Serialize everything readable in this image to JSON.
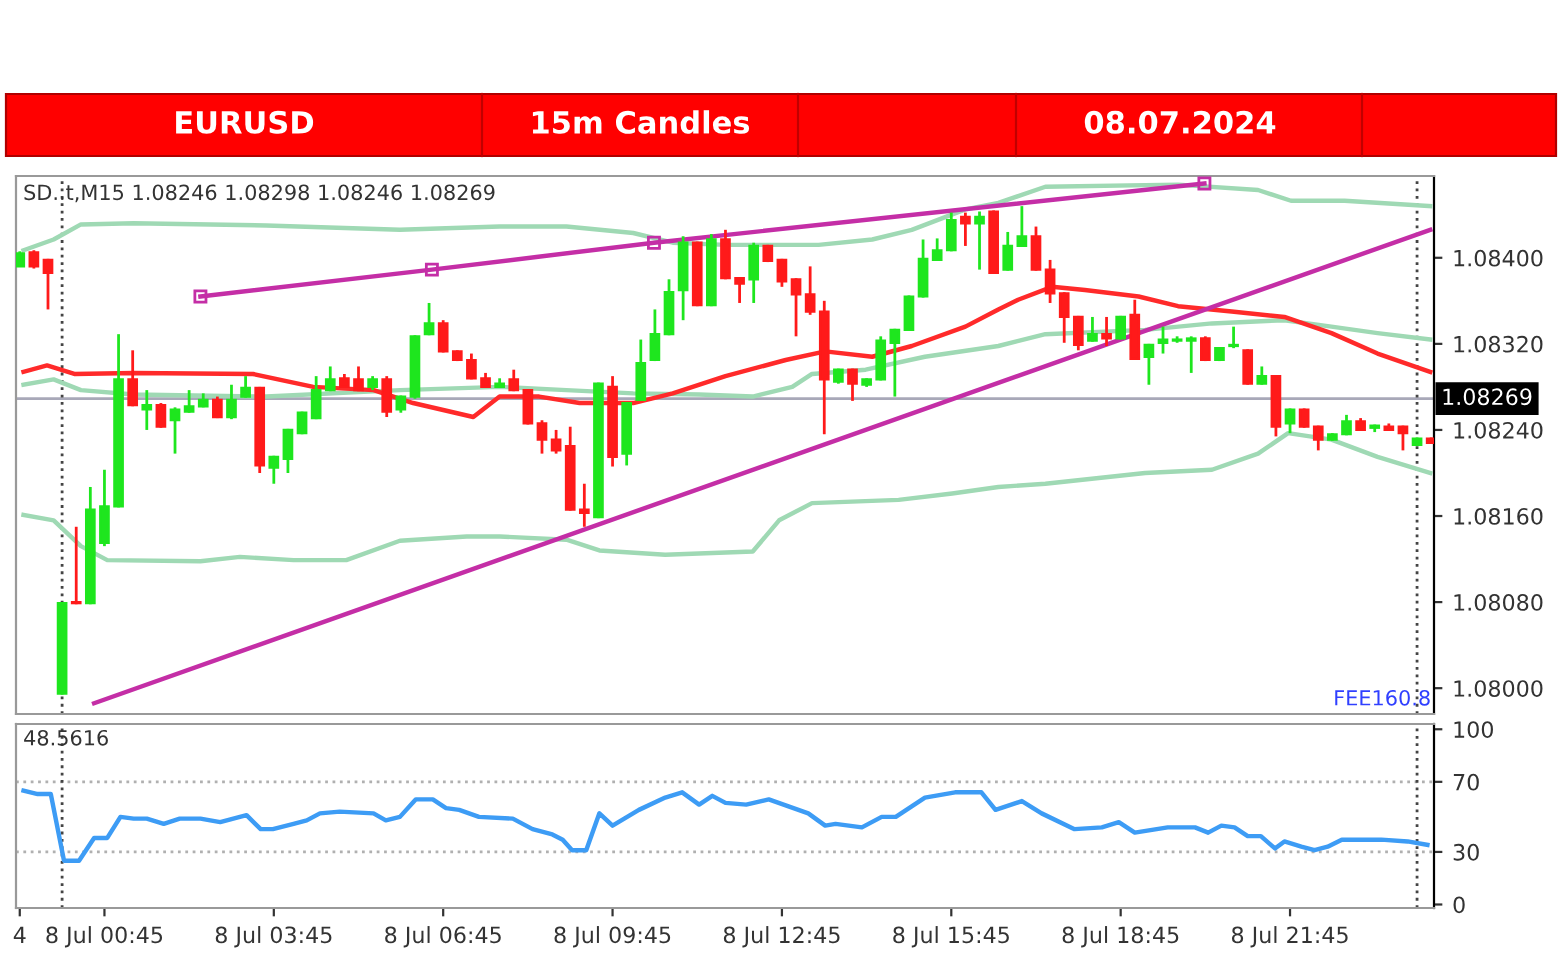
{
  "chart_data": [
    {
      "type": "candlestick",
      "title": "EURUSD",
      "subtitle": "15m Candles",
      "annotations": [
        "08.07.2024",
        "SD..t,M15 1.08246 1.08298 1.08246 1.08269",
        "FEE160.8"
      ],
      "xlim": [
        "2024-07-07T23:11",
        "2024-07-09T00:18"
      ],
      "ylim": [
        1.07976,
        1.08476
      ],
      "tick_labels": "y",
      "yticks": [
        {
          "value": 1.08,
          "label": "1.08000"
        },
        {
          "value": 1.0808,
          "label": "1.08080"
        },
        {
          "value": 1.0816,
          "label": "1.08160"
        },
        {
          "value": 1.0824,
          "label": "1.08240"
        },
        {
          "value": 1.0832,
          "label": "1.08320"
        },
        {
          "value": 1.084,
          "label": "1.08400"
        }
      ],
      "ref_lines": [
        {
          "axis": "y",
          "value": 1.08269,
          "label": "1.08269",
          "color": "#a8a8b8"
        },
        {
          "axis": "x",
          "value": "2024-07-08T00:00",
          "line_style": "dotted",
          "color": "#444444"
        },
        {
          "axis": "x",
          "value": "2024-07-09T00:00",
          "line_style": "dotted",
          "color": "#444444"
        }
      ],
      "series": [
        {
          "type": "candlestick",
          "x": [
            "2024-07-07T23:15",
            "2024-07-07T23:30",
            "2024-07-07T23:45",
            "2024-07-08T00:00",
            "2024-07-08T00:15",
            "2024-07-08T00:30",
            "2024-07-08T00:45",
            "2024-07-08T01:00",
            "2024-07-08T01:15",
            "2024-07-08T01:30",
            "2024-07-08T01:45",
            "2024-07-08T02:00",
            "2024-07-08T02:15",
            "2024-07-08T02:30",
            "2024-07-08T02:45",
            "2024-07-08T03:00",
            "2024-07-08T03:15",
            "2024-07-08T03:30",
            "2024-07-08T03:45",
            "2024-07-08T04:00",
            "2024-07-08T04:15",
            "2024-07-08T04:30",
            "2024-07-08T04:45",
            "2024-07-08T05:00",
            "2024-07-08T05:15",
            "2024-07-08T05:30",
            "2024-07-08T05:45",
            "2024-07-08T06:00",
            "2024-07-08T06:15",
            "2024-07-08T06:30",
            "2024-07-08T06:45",
            "2024-07-08T07:00",
            "2024-07-08T07:15",
            "2024-07-08T07:30",
            "2024-07-08T07:45",
            "2024-07-08T08:00",
            "2024-07-08T08:15",
            "2024-07-08T08:30",
            "2024-07-08T08:45",
            "2024-07-08T09:00",
            "2024-07-08T09:15",
            "2024-07-08T09:30",
            "2024-07-08T09:45",
            "2024-07-08T10:00",
            "2024-07-08T10:15",
            "2024-07-08T10:30",
            "2024-07-08T10:45",
            "2024-07-08T11:00",
            "2024-07-08T11:15",
            "2024-07-08T11:30",
            "2024-07-08T11:45",
            "2024-07-08T12:00",
            "2024-07-08T12:15",
            "2024-07-08T12:30",
            "2024-07-08T12:45",
            "2024-07-08T13:00",
            "2024-07-08T13:15",
            "2024-07-08T13:30",
            "2024-07-08T13:45",
            "2024-07-08T14:00",
            "2024-07-08T14:15",
            "2024-07-08T14:30",
            "2024-07-08T14:45",
            "2024-07-08T15:00",
            "2024-07-08T15:15",
            "2024-07-08T15:30",
            "2024-07-08T15:45",
            "2024-07-08T16:00",
            "2024-07-08T16:15",
            "2024-07-08T16:30",
            "2024-07-08T16:45",
            "2024-07-08T17:00",
            "2024-07-08T17:15",
            "2024-07-08T17:30",
            "2024-07-08T17:45",
            "2024-07-08T18:00",
            "2024-07-08T18:15",
            "2024-07-08T18:30",
            "2024-07-08T18:45",
            "2024-07-08T19:00",
            "2024-07-08T19:15",
            "2024-07-08T19:30",
            "2024-07-08T19:45",
            "2024-07-08T20:00",
            "2024-07-08T20:15",
            "2024-07-08T20:30",
            "2024-07-08T20:45",
            "2024-07-08T21:00",
            "2024-07-08T21:15",
            "2024-07-08T21:30",
            "2024-07-08T21:45",
            "2024-07-08T22:00",
            "2024-07-08T22:15",
            "2024-07-08T22:30",
            "2024-07-08T22:45",
            "2024-07-08T23:00",
            "2024-07-08T23:15",
            "2024-07-08T23:30",
            "2024-07-08T23:45",
            "2024-07-09T00:00",
            "2024-07-09T00:15"
          ],
          "ohlc": [
            [
              1.08392,
              1.08406,
              1.08392,
              1.08404
            ],
            [
              1.08405,
              1.08407,
              1.0839,
              1.08392
            ],
            [
              1.08398,
              1.08399,
              1.08352,
              1.08386
            ],
            [
              1.07995,
              1.0808,
              1.07994,
              1.08079
            ],
            [
              1.0808,
              1.0815,
              1.08078,
              1.08079
            ],
            [
              1.08079,
              1.08187,
              1.08078,
              1.08166
            ],
            [
              1.08135,
              1.08203,
              1.08132,
              1.08169
            ],
            [
              1.08169,
              1.08329,
              1.08168,
              1.08287
            ],
            [
              1.08287,
              1.08314,
              1.08262,
              1.08263
            ],
            [
              1.08259,
              1.08277,
              1.0824,
              1.08263
            ],
            [
              1.08263,
              1.08265,
              1.08242,
              1.08243
            ],
            [
              1.08249,
              1.08261,
              1.08218,
              1.08259
            ],
            [
              1.08257,
              1.08277,
              1.08256,
              1.08262
            ],
            [
              1.08262,
              1.08274,
              1.08261,
              1.08268
            ],
            [
              1.08268,
              1.08271,
              1.08251,
              1.08252
            ],
            [
              1.08252,
              1.08282,
              1.0825,
              1.08268
            ],
            [
              1.08271,
              1.0829,
              1.0827,
              1.08279
            ],
            [
              1.08279,
              1.0828,
              1.082,
              1.08207
            ],
            [
              1.08205,
              1.08216,
              1.0819,
              1.08215
            ],
            [
              1.08213,
              1.08241,
              1.082,
              1.0824
            ],
            [
              1.08237,
              1.08257,
              1.08236,
              1.08256
            ],
            [
              1.08251,
              1.0829,
              1.0825,
              1.08277
            ],
            [
              1.08277,
              1.08299,
              1.08276,
              1.08287
            ],
            [
              1.08288,
              1.08292,
              1.08279,
              1.0828
            ],
            [
              1.08287,
              1.08299,
              1.08276,
              1.08277
            ],
            [
              1.0828,
              1.0829,
              1.08277,
              1.08287
            ],
            [
              1.08287,
              1.0829,
              1.08252,
              1.08257
            ],
            [
              1.08259,
              1.08272,
              1.08256,
              1.08271
            ],
            [
              1.08271,
              1.08328,
              1.08269,
              1.08327
            ],
            [
              1.08329,
              1.08358,
              1.08328,
              1.08339
            ],
            [
              1.08339,
              1.08342,
              1.08312,
              1.08313
            ],
            [
              1.08313,
              1.08314,
              1.08304,
              1.08305
            ],
            [
              1.08305,
              1.08311,
              1.08287,
              1.08288
            ],
            [
              1.08288,
              1.08293,
              1.08279,
              1.0828
            ],
            [
              1.0828,
              1.08288,
              1.08279,
              1.08283
            ],
            [
              1.08287,
              1.08296,
              1.08276,
              1.08277
            ],
            [
              1.08277,
              1.08278,
              1.08245,
              1.08246
            ],
            [
              1.08246,
              1.08249,
              1.08218,
              1.08231
            ],
            [
              1.08231,
              1.0824,
              1.08218,
              1.08221
            ],
            [
              1.08225,
              1.08243,
              1.08165,
              1.08166
            ],
            [
              1.08166,
              1.0819,
              1.0815,
              1.08163
            ],
            [
              1.08159,
              1.08284,
              1.08158,
              1.08283
            ],
            [
              1.0828,
              1.0829,
              1.08206,
              1.08215
            ],
            [
              1.08218,
              1.08266,
              1.08207,
              1.08265
            ],
            [
              1.08268,
              1.08324,
              1.08267,
              1.08302
            ],
            [
              1.08305,
              1.08352,
              1.08304,
              1.08329
            ],
            [
              1.08329,
              1.0838,
              1.08328,
              1.08368
            ],
            [
              1.0837,
              1.0842,
              1.08342,
              1.08414
            ],
            [
              1.08414,
              1.08415,
              1.08355,
              1.08356
            ],
            [
              1.08356,
              1.08422,
              1.08355,
              1.08417
            ],
            [
              1.08417,
              1.08426,
              1.0838,
              1.08381
            ],
            [
              1.08381,
              1.08382,
              1.08358,
              1.08376
            ],
            [
              1.0838,
              1.08414,
              1.08358,
              1.08411
            ],
            [
              1.08411,
              1.08412,
              1.08396,
              1.08397
            ],
            [
              1.08398,
              1.08399,
              1.08373,
              1.08378
            ],
            [
              1.0838,
              1.08381,
              1.08327,
              1.08366
            ],
            [
              1.08366,
              1.08392,
              1.08347,
              1.0835
            ],
            [
              1.0835,
              1.0836,
              1.08236,
              1.08287
            ],
            [
              1.08285,
              1.08297,
              1.08283,
              1.08296
            ],
            [
              1.08296,
              1.08297,
              1.08267,
              1.08283
            ],
            [
              1.08282,
              1.08288,
              1.0828,
              1.08287
            ],
            [
              1.08287,
              1.08327,
              1.08286,
              1.08323
            ],
            [
              1.08321,
              1.08334,
              1.08271,
              1.08333
            ],
            [
              1.08333,
              1.08365,
              1.08332,
              1.08364
            ],
            [
              1.08364,
              1.08417,
              1.08363,
              1.08399
            ],
            [
              1.08398,
              1.08418,
              1.08397,
              1.08407
            ],
            [
              1.08407,
              1.08442,
              1.08406,
              1.08435
            ],
            [
              1.08438,
              1.08442,
              1.08411,
              1.08432
            ],
            [
              1.08432,
              1.08443,
              1.08389,
              1.08438
            ],
            [
              1.08443,
              1.08444,
              1.08385,
              1.08386
            ],
            [
              1.08389,
              1.08424,
              1.08388,
              1.08411
            ],
            [
              1.08411,
              1.08448,
              1.0841,
              1.0842
            ],
            [
              1.0842,
              1.08429,
              1.08388,
              1.08389
            ],
            [
              1.08389,
              1.08398,
              1.08358,
              1.08367
            ],
            [
              1.08367,
              1.08368,
              1.08321,
              1.08345
            ],
            [
              1.08345,
              1.08346,
              1.08314,
              1.08319
            ],
            [
              1.08323,
              1.08345,
              1.08322,
              1.08329
            ],
            [
              1.08329,
              1.08345,
              1.08318,
              1.08325
            ],
            [
              1.08325,
              1.08346,
              1.08324,
              1.08345
            ],
            [
              1.08347,
              1.08361,
              1.08305,
              1.08306
            ],
            [
              1.08308,
              1.0832,
              1.08282,
              1.08319
            ],
            [
              1.08321,
              1.08336,
              1.08311,
              1.08324
            ],
            [
              1.08323,
              1.08327,
              1.08321,
              1.08324
            ],
            [
              1.08323,
              1.08327,
              1.08293,
              1.08325
            ],
            [
              1.08325,
              1.08327,
              1.08304,
              1.08305
            ],
            [
              1.08305,
              1.08317,
              1.08304,
              1.08316
            ],
            [
              1.08318,
              1.08336,
              1.08316,
              1.08319
            ],
            [
              1.08314,
              1.08315,
              1.08282,
              1.08283
            ],
            [
              1.08283,
              1.08299,
              1.08282,
              1.0829
            ],
            [
              1.0829,
              1.08291,
              1.08234,
              1.08243
            ],
            [
              1.08246,
              1.0826,
              1.08237,
              1.08259
            ],
            [
              1.08259,
              1.0826,
              1.08242,
              1.08243
            ],
            [
              1.08243,
              1.08244,
              1.08221,
              1.08231
            ],
            [
              1.08231,
              1.08237,
              1.0823,
              1.08236
            ],
            [
              1.08236,
              1.08254,
              1.08235,
              1.08248
            ],
            [
              1.08248,
              1.08251,
              1.08239,
              1.0824
            ],
            [
              1.08242,
              1.08245,
              1.08238,
              1.08244
            ],
            [
              1.08243,
              1.08246,
              1.08239,
              1.0824
            ],
            [
              1.08243,
              1.08244,
              1.08221,
              1.08237
            ],
            [
              1.08226,
              1.08233,
              1.08225,
              1.08232
            ],
            [
              1.08232,
              1.08233,
              1.08227,
              1.08228
            ]
          ],
          "colors": [
            "#1ee61e",
            "#ff1a1a",
            "#ff1a1a",
            "#1ee61e",
            "#ff1a1a",
            "#1ee61e",
            "#1ee61e",
            "#1ee61e",
            "#ff1a1a",
            "#1ee61e",
            "#ff1a1a",
            "#1ee61e",
            "#1ee61e",
            "#1ee61e",
            "#ff1a1a",
            "#1ee61e",
            "#1ee61e",
            "#ff1a1a",
            "#1ee61e",
            "#1ee61e",
            "#1ee61e",
            "#1ee61e",
            "#1ee61e",
            "#ff1a1a",
            "#ff1a1a",
            "#1ee61e",
            "#ff1a1a",
            "#1ee61e",
            "#1ee61e",
            "#1ee61e",
            "#ff1a1a",
            "#ff1a1a",
            "#ff1a1a",
            "#ff1a1a",
            "#1ee61e",
            "#ff1a1a",
            "#ff1a1a",
            "#ff1a1a",
            "#ff1a1a",
            "#ff1a1a",
            "#ff1a1a",
            "#1ee61e",
            "#ff1a1a",
            "#1ee61e",
            "#1ee61e",
            "#1ee61e",
            "#1ee61e",
            "#1ee61e",
            "#ff1a1a",
            "#1ee61e",
            "#ff1a1a",
            "#ff1a1a",
            "#1ee61e",
            "#ff1a1a",
            "#ff1a1a",
            "#ff1a1a",
            "#ff1a1a",
            "#ff1a1a",
            "#1ee61e",
            "#ff1a1a",
            "#1ee61e",
            "#1ee61e",
            "#1ee61e",
            "#1ee61e",
            "#1ee61e",
            "#1ee61e",
            "#1ee61e",
            "#ff1a1a",
            "#1ee61e",
            "#ff1a1a",
            "#1ee61e",
            "#1ee61e",
            "#ff1a1a",
            "#ff1a1a",
            "#ff1a1a",
            "#ff1a1a",
            "#1ee61e",
            "#ff1a1a",
            "#1ee61e",
            "#ff1a1a",
            "#1ee61e",
            "#1ee61e",
            "#1ee61e",
            "#1ee61e",
            "#ff1a1a",
            "#1ee61e",
            "#1ee61e",
            "#ff1a1a",
            "#1ee61e",
            "#ff1a1a",
            "#1ee61e",
            "#ff1a1a",
            "#ff1a1a",
            "#1ee61e",
            "#1ee61e",
            "#ff1a1a",
            "#1ee61e",
            "#ff1a1a",
            "#ff1a1a",
            "#1ee61e",
            "#ff1a1a"
          ]
        },
        {
          "type": "line",
          "color": "#9fd9b4",
          "x": [
            "2024-07-07T23:19",
            "2024-07-07T23:51",
            "2024-07-08T00:20",
            "2024-07-08T01:16",
            "2024-07-08T03:37",
            "2024-07-08T05:59",
            "2024-07-08T07:45",
            "2024-07-08T08:56",
            "2024-07-08T10:07",
            "2024-07-08T10:49",
            "2024-07-08T11:45",
            "2024-07-08T13:24",
            "2024-07-08T14:21",
            "2024-07-08T15:03",
            "2024-07-08T16:00",
            "2024-07-08T16:35",
            "2024-07-08T17:25",
            "2024-07-08T19:46",
            "2024-07-08T21:11",
            "2024-07-08T21:46",
            "2024-07-08T22:43",
            "2024-07-09T00:14"
          ],
          "values": [
            1.08407,
            1.08417,
            1.08431,
            1.08432,
            1.0843,
            1.08426,
            1.08429,
            1.08429,
            1.08423,
            1.08414,
            1.08412,
            1.08412,
            1.08417,
            1.08426,
            1.08445,
            1.08451,
            1.08466,
            1.08468,
            1.08463,
            1.08453,
            1.08453,
            1.08448
          ]
        },
        {
          "type": "line",
          "color": "#9fd9b4",
          "x": [
            "2024-07-07T23:19",
            "2024-07-07T23:51",
            "2024-07-08T00:20",
            "2024-07-08T01:16",
            "2024-07-08T03:37",
            "2024-07-08T05:59",
            "2024-07-08T07:45",
            "2024-07-08T08:56",
            "2024-07-08T10:07",
            "2024-07-08T11:17",
            "2024-07-08T12:14",
            "2024-07-08T12:56",
            "2024-07-08T13:17",
            "2024-07-08T14:14",
            "2024-07-08T15:17",
            "2024-07-08T16:35",
            "2024-07-08T17:25",
            "2024-07-08T19:11",
            "2024-07-08T20:22",
            "2024-07-08T21:39",
            "2024-07-08T22:29",
            "2024-07-08T23:18",
            "2024-07-09T00:14"
          ],
          "values": [
            1.08282,
            1.08287,
            1.08277,
            1.08273,
            1.08271,
            1.08277,
            1.0828,
            1.08277,
            1.08274,
            1.08273,
            1.08271,
            1.0828,
            1.08292,
            1.08296,
            1.08308,
            1.08318,
            1.08329,
            1.08333,
            1.08339,
            1.08342,
            1.08336,
            1.0833,
            1.08324
          ]
        },
        {
          "type": "line",
          "color": "#9fd9b4",
          "x": [
            "2024-07-07T23:19",
            "2024-07-07T23:51",
            "2024-07-08T00:20",
            "2024-07-08T00:48",
            "2024-07-08T02:27",
            "2024-07-08T03:09",
            "2024-07-08T04:06",
            "2024-07-08T05:02",
            "2024-07-08T05:59",
            "2024-07-08T07:10",
            "2024-07-08T07:45",
            "2024-07-08T08:56",
            "2024-07-08T09:31",
            "2024-07-08T10:41",
            "2024-07-08T12:14",
            "2024-07-08T12:42",
            "2024-07-08T13:17",
            "2024-07-08T14:49",
            "2024-07-08T15:46",
            "2024-07-08T16:35",
            "2024-07-08T17:25",
            "2024-07-08T19:11",
            "2024-07-08T20:22",
            "2024-07-08T21:11",
            "2024-07-08T21:43",
            "2024-07-08T22:29",
            "2024-07-08T23:18",
            "2024-07-09T00:14"
          ],
          "values": [
            1.08161,
            1.08156,
            1.08132,
            1.08119,
            1.08118,
            1.08122,
            1.08119,
            1.08119,
            1.08137,
            1.08141,
            1.08141,
            1.08138,
            1.08128,
            1.08124,
            1.08127,
            1.08156,
            1.08172,
            1.08175,
            1.08181,
            1.08187,
            1.0819,
            1.082,
            1.08203,
            1.08218,
            1.08237,
            1.08231,
            1.08215,
            1.082
          ]
        },
        {
          "type": "line",
          "color": "#ff2a2a",
          "x": [
            "2024-07-07T23:19",
            "2024-07-07T23:44",
            "2024-07-08T00:13",
            "2024-07-08T01:16",
            "2024-07-08T03:23",
            "2024-07-08T04:27",
            "2024-07-08T05:31",
            "2024-07-08T06:13",
            "2024-07-08T07:17",
            "2024-07-08T07:45",
            "2024-07-08T08:27",
            "2024-07-08T09:10",
            "2024-07-08T10:07",
            "2024-07-08T10:49",
            "2024-07-08T11:45",
            "2024-07-08T12:49",
            "2024-07-08T13:31",
            "2024-07-08T14:21",
            "2024-07-08T15:03",
            "2024-07-08T16:00",
            "2024-07-08T16:35",
            "2024-07-08T16:56",
            "2024-07-08T17:32",
            "2024-07-08T18:07",
            "2024-07-08T19:04",
            "2024-07-08T19:46",
            "2024-07-08T20:43",
            "2024-07-08T21:39",
            "2024-07-08T22:29",
            "2024-07-08T23:18",
            "2024-07-09T00:14"
          ],
          "values": [
            1.08294,
            1.083,
            1.08292,
            1.08293,
            1.08292,
            1.0828,
            1.08277,
            1.08265,
            1.08252,
            1.08271,
            1.08271,
            1.08265,
            1.08265,
            1.08274,
            1.0829,
            1.08305,
            1.08313,
            1.08308,
            1.08318,
            1.08336,
            1.08352,
            1.08361,
            1.08373,
            1.0837,
            1.08364,
            1.08355,
            1.0835,
            1.08345,
            1.0833,
            1.08311,
            1.08294
          ]
        },
        {
          "type": "line",
          "color": "#c42ea6",
          "marker": "square",
          "x": [
            "2024-07-08T02:27",
            "2024-07-08T06:33",
            "2024-07-08T10:29",
            "2024-07-08T20:14"
          ],
          "values": [
            1.08364,
            1.08389,
            1.08414,
            1.08469
          ]
        },
        {
          "type": "line",
          "color": "#c42ea6",
          "x": [
            "2024-07-08T00:34",
            "2024-07-09T00:14"
          ],
          "values": [
            1.07986,
            1.08426
          ]
        }
      ]
    },
    {
      "type": "line",
      "annotations": [
        "48.5616"
      ],
      "color": "#3d9cf5",
      "xlim": [
        "2024-07-07T23:11",
        "2024-07-09T00:18"
      ],
      "ylim": [
        -2,
        103
      ],
      "yticks": [
        0,
        30,
        70,
        100
      ],
      "xticks": [
        {
          "value": "2024-07-07T23:15",
          "label": "4"
        },
        {
          "value": "2024-07-08T00:45",
          "label": "8 Jul 00:45"
        },
        {
          "value": "2024-07-08T03:45",
          "label": "8 Jul 03:45"
        },
        {
          "value": "2024-07-08T06:45",
          "label": "8 Jul 06:45"
        },
        {
          "value": "2024-07-08T09:45",
          "label": "8 Jul 09:45"
        },
        {
          "value": "2024-07-08T12:45",
          "label": "8 Jul 12:45"
        },
        {
          "value": "2024-07-08T15:45",
          "label": "8 Jul 15:45"
        },
        {
          "value": "2024-07-08T18:45",
          "label": "8 Jul 18:45"
        },
        {
          "value": "2024-07-08T21:45",
          "label": "8 Jul 21:45"
        }
      ],
      "ref_lines": [
        {
          "axis": "y",
          "value": 70,
          "line_style": "dotted",
          "color": "#b0b0b0"
        },
        {
          "axis": "y",
          "value": 30,
          "line_style": "dotted",
          "color": "#b0b0b0"
        },
        {
          "axis": "x",
          "value": "2024-07-08T00:00",
          "line_style": "dotted",
          "color": "#444444"
        },
        {
          "axis": "x",
          "value": "2024-07-09T00:00",
          "line_style": "dotted",
          "color": "#444444"
        }
      ],
      "x": [
        "2024-07-07T23:19",
        "2024-07-07T23:34",
        "2024-07-07T23:48",
        "2024-07-08T00:02",
        "2024-07-08T00:18",
        "2024-07-08T00:34",
        "2024-07-08T00:48",
        "2024-07-08T01:02",
        "2024-07-08T01:16",
        "2024-07-08T01:30",
        "2024-07-08T01:48",
        "2024-07-08T02:05",
        "2024-07-08T02:27",
        "2024-07-08T02:48",
        "2024-07-08T03:02",
        "2024-07-08T03:16",
        "2024-07-08T03:31",
        "2024-07-08T03:44",
        "2024-07-08T04:06",
        "2024-07-08T04:20",
        "2024-07-08T04:34",
        "2024-07-08T04:55",
        "2024-07-08T05:31",
        "2024-07-08T05:44",
        "2024-07-08T05:59",
        "2024-07-08T06:16",
        "2024-07-08T06:34",
        "2024-07-08T06:48",
        "2024-07-08T07:02",
        "2024-07-08T07:23",
        "2024-07-08T07:59",
        "2024-07-08T08:20",
        "2024-07-08T08:41",
        "2024-07-08T08:52",
        "2024-07-08T09:02",
        "2024-07-08T09:17",
        "2024-07-08T09:31",
        "2024-07-08T09:45",
        "2024-07-08T10:13",
        "2024-07-08T10:41",
        "2024-07-08T10:59",
        "2024-07-08T11:17",
        "2024-07-08T11:31",
        "2024-07-08T11:45",
        "2024-07-08T12:07",
        "2024-07-08T12:31",
        "2024-07-08T13:13",
        "2024-07-08T13:31",
        "2024-07-08T13:42",
        "2024-07-08T14:10",
        "2024-07-08T14:31",
        "2024-07-08T14:46",
        "2024-07-08T15:17",
        "2024-07-08T15:49",
        "2024-07-08T16:17",
        "2024-07-08T16:32",
        "2024-07-08T17:00",
        "2024-07-08T17:21",
        "2024-07-08T17:56",
        "2024-07-08T18:25",
        "2024-07-08T18:43",
        "2024-07-08T19:00",
        "2024-07-08T19:35",
        "2024-07-08T20:04",
        "2024-07-08T20:18",
        "2024-07-08T20:32",
        "2024-07-08T20:46",
        "2024-07-08T21:00",
        "2024-07-08T21:14",
        "2024-07-08T21:29",
        "2024-07-08T21:39",
        "2024-07-08T21:57",
        "2024-07-08T22:11",
        "2024-07-08T22:25",
        "2024-07-08T22:40",
        "2024-07-08T23:22",
        "2024-07-08T23:50",
        "2024-07-09T00:11"
      ],
      "values": [
        65,
        63,
        63,
        25,
        25,
        38,
        38,
        50,
        49,
        49,
        46,
        49,
        49,
        47,
        49,
        51,
        43,
        43,
        46,
        48,
        52,
        53,
        52,
        48,
        50,
        60,
        60,
        55,
        54,
        50,
        49,
        43,
        40,
        37,
        31,
        31,
        52,
        45,
        54,
        61,
        64,
        57,
        62,
        58,
        57,
        60,
        52,
        45,
        46,
        44,
        50,
        50,
        61,
        64,
        64,
        54,
        59,
        52,
        43,
        44,
        47,
        41,
        44,
        44,
        41,
        45,
        44,
        39,
        39,
        32,
        36,
        33,
        31,
        33,
        37,
        37,
        36,
        34
      ]
    }
  ]
}
